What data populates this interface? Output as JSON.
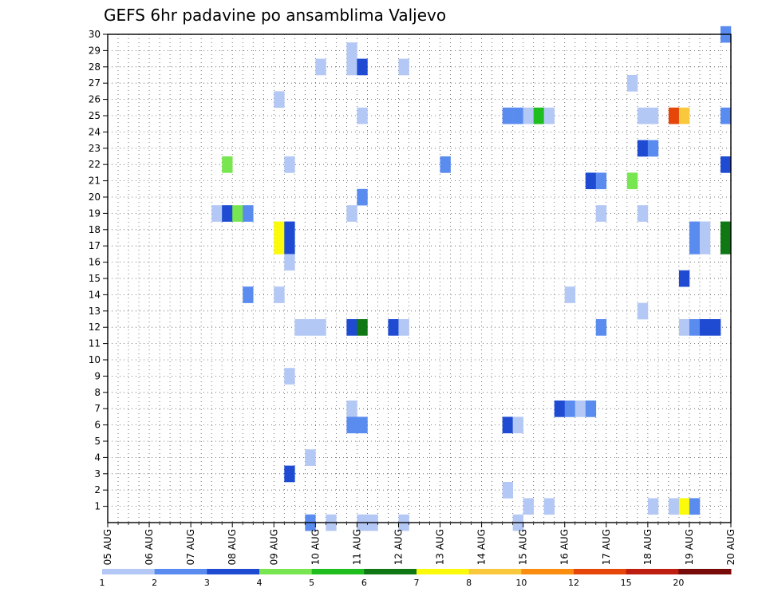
{
  "chart_data": {
    "type": "heatmap",
    "title": "GEFS 6hr padavine po ansamblima Valjevo",
    "xlabel": "",
    "ylabel": "",
    "x_tick_labels": [
      "05 AUG",
      "06 AUG",
      "07 AUG",
      "08 AUG",
      "09 AUG",
      "10 AUG",
      "11 AUG",
      "12 AUG",
      "13 AUG",
      "14 AUG",
      "15 AUG",
      "16 AUG",
      "17 AUG",
      "18 AUG",
      "19 AUG",
      "20 AUG"
    ],
    "x_range_days": [
      0,
      15
    ],
    "y_tick_labels": [
      "1",
      "2",
      "3",
      "4",
      "5",
      "6",
      "7",
      "8",
      "9",
      "10",
      "11",
      "12",
      "13",
      "14",
      "15",
      "16",
      "17",
      "18",
      "19",
      "20",
      "21",
      "22",
      "23",
      "24",
      "25",
      "26",
      "27",
      "28",
      "29",
      "30"
    ],
    "y_range": [
      0,
      30
    ],
    "grid": true,
    "colorbar": {
      "placement": "bottom",
      "labels": [
        "1",
        "2",
        "3",
        "4",
        "5",
        "6",
        "7",
        "8",
        "10",
        "12",
        "15",
        "20"
      ],
      "colors": [
        "#b4c8f5",
        "#5a8cf0",
        "#1e4bd2",
        "#78e650",
        "#1ebe1e",
        "#0f7814",
        "#fafa0a",
        "#fac83c",
        "#fa8c0f",
        "#e6460a",
        "#be1e0f",
        "#780a0a"
      ]
    },
    "cells": [
      {
        "member": 30,
        "day": 14.75,
        "level": 2
      },
      {
        "member": 29,
        "day": 5.75,
        "level": 1
      },
      {
        "member": 28,
        "day": 5,
        "level": 1
      },
      {
        "member": 28,
        "day": 5.75,
        "level": 1
      },
      {
        "member": 28,
        "day": 6,
        "level": 3
      },
      {
        "member": 28,
        "day": 7,
        "level": 1
      },
      {
        "member": 27,
        "day": 12.5,
        "level": 1
      },
      {
        "member": 26,
        "day": 4,
        "level": 1
      },
      {
        "member": 25,
        "day": 6,
        "level": 1
      },
      {
        "member": 25,
        "day": 9.5,
        "level": 2
      },
      {
        "member": 25,
        "day": 9.75,
        "level": 2
      },
      {
        "member": 25,
        "day": 10,
        "level": 1
      },
      {
        "member": 25,
        "day": 10.25,
        "level": 5
      },
      {
        "member": 25,
        "day": 10.5,
        "level": 1
      },
      {
        "member": 25,
        "day": 12.75,
        "level": 1
      },
      {
        "member": 25,
        "day": 13,
        "level": 1
      },
      {
        "member": 25,
        "day": 13.5,
        "level": 10
      },
      {
        "member": 25,
        "day": 13.75,
        "level": 8
      },
      {
        "member": 25,
        "day": 14.75,
        "level": 2
      },
      {
        "member": 23,
        "day": 12.75,
        "level": 3
      },
      {
        "member": 23,
        "day": 13,
        "level": 2
      },
      {
        "member": 22,
        "day": 2.75,
        "level": 4
      },
      {
        "member": 22,
        "day": 4.25,
        "level": 1
      },
      {
        "member": 22,
        "day": 8,
        "level": 2
      },
      {
        "member": 22,
        "day": 14.75,
        "level": 3
      },
      {
        "member": 21,
        "day": 11.5,
        "level": 3
      },
      {
        "member": 21,
        "day": 11.75,
        "level": 2
      },
      {
        "member": 21,
        "day": 12.5,
        "level": 4
      },
      {
        "member": 20,
        "day": 6,
        "level": 2
      },
      {
        "member": 19,
        "day": 2.5,
        "level": 1
      },
      {
        "member": 19,
        "day": 2.75,
        "level": 3
      },
      {
        "member": 19,
        "day": 3,
        "level": 4
      },
      {
        "member": 19,
        "day": 3.25,
        "level": 2
      },
      {
        "member": 19,
        "day": 5.75,
        "level": 1
      },
      {
        "member": 19,
        "day": 11.75,
        "level": 1
      },
      {
        "member": 19,
        "day": 12.75,
        "level": 1
      },
      {
        "member": 18,
        "day": 4,
        "level": 7
      },
      {
        "member": 18,
        "day": 4.25,
        "level": 3
      },
      {
        "member": 18,
        "day": 14,
        "level": 2
      },
      {
        "member": 18,
        "day": 14.25,
        "level": 1
      },
      {
        "member": 18,
        "day": 14.75,
        "level": 6
      },
      {
        "member": 17,
        "day": 4,
        "level": 7
      },
      {
        "member": 17,
        "day": 4.25,
        "level": 3
      },
      {
        "member": 17,
        "day": 14,
        "level": 2
      },
      {
        "member": 17,
        "day": 14.25,
        "level": 1
      },
      {
        "member": 17,
        "day": 14.75,
        "level": 6
      },
      {
        "member": 16,
        "day": 4.25,
        "level": 1
      },
      {
        "member": 15,
        "day": 13.75,
        "level": 3
      },
      {
        "member": 14,
        "day": 3.25,
        "level": 2
      },
      {
        "member": 14,
        "day": 4,
        "level": 1
      },
      {
        "member": 14,
        "day": 11,
        "level": 1
      },
      {
        "member": 13,
        "day": 12.75,
        "level": 1
      },
      {
        "member": 12,
        "day": 4.5,
        "level": 1
      },
      {
        "member": 12,
        "day": 4.75,
        "level": 1
      },
      {
        "member": 12,
        "day": 5,
        "level": 1
      },
      {
        "member": 12,
        "day": 5.75,
        "level": 3
      },
      {
        "member": 12,
        "day": 6,
        "level": 6
      },
      {
        "member": 12,
        "day": 6.75,
        "level": 3
      },
      {
        "member": 12,
        "day": 7,
        "level": 1
      },
      {
        "member": 12,
        "day": 11.75,
        "level": 2
      },
      {
        "member": 12,
        "day": 13.75,
        "level": 1
      },
      {
        "member": 12,
        "day": 14,
        "level": 2
      },
      {
        "member": 12,
        "day": 14.25,
        "level": 3
      },
      {
        "member": 12,
        "day": 14.5,
        "level": 3
      },
      {
        "member": 9,
        "day": 4.25,
        "level": 1
      },
      {
        "member": 7,
        "day": 5.75,
        "level": 1
      },
      {
        "member": 7,
        "day": 10.75,
        "level": 3
      },
      {
        "member": 7,
        "day": 11,
        "level": 2
      },
      {
        "member": 7,
        "day": 11.25,
        "level": 1
      },
      {
        "member": 7,
        "day": 11.5,
        "level": 2
      },
      {
        "member": 6,
        "day": 5.75,
        "level": 2
      },
      {
        "member": 6,
        "day": 6,
        "level": 2
      },
      {
        "member": 6,
        "day": 9.5,
        "level": 3
      },
      {
        "member": 6,
        "day": 9.75,
        "level": 1
      },
      {
        "member": 4,
        "day": 4.75,
        "level": 1
      },
      {
        "member": 3,
        "day": 4.25,
        "level": 3
      },
      {
        "member": 2,
        "day": 9.5,
        "level": 1
      },
      {
        "member": 1,
        "day": 10,
        "level": 1
      },
      {
        "member": 1,
        "day": 10.5,
        "level": 1
      },
      {
        "member": 1,
        "day": 13,
        "level": 1
      },
      {
        "member": 1,
        "day": 13.5,
        "level": 1
      },
      {
        "member": 1,
        "day": 13.75,
        "level": 7
      },
      {
        "member": 1,
        "day": 14,
        "level": 2
      },
      {
        "member": 0,
        "day": 4.75,
        "level": 2
      },
      {
        "member": 0,
        "day": 5.25,
        "level": 1
      },
      {
        "member": 0,
        "day": 6,
        "level": 1
      },
      {
        "member": 0,
        "day": 6.25,
        "level": 1
      },
      {
        "member": 0,
        "day": 7,
        "level": 1
      },
      {
        "member": 0,
        "day": 9.75,
        "level": 1
      }
    ]
  }
}
